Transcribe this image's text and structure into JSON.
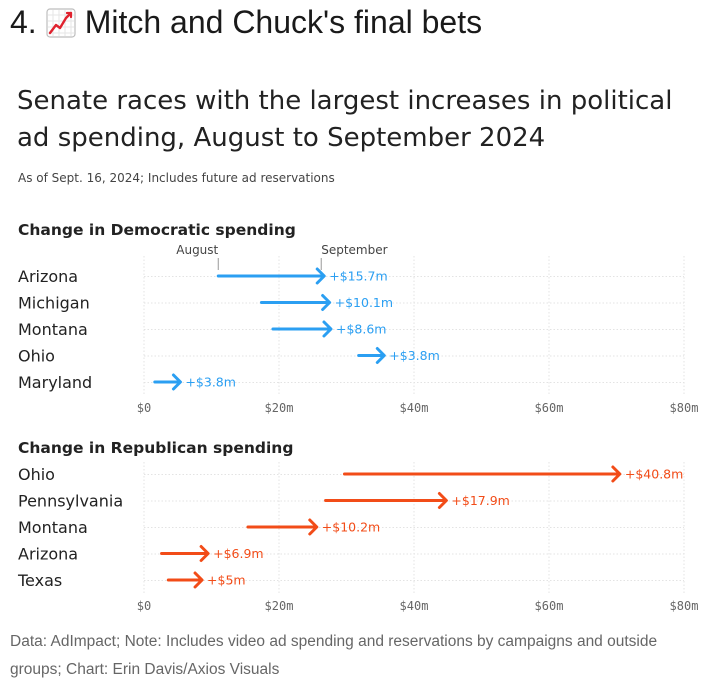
{
  "page": {
    "section_number": "4.",
    "section_icon": "chart-increasing-emoji",
    "section_title": "Mitch and Chuck's final bets"
  },
  "chart_title": "Senate races with the largest increases in political ad spending, August to September 2024",
  "chart_subtitle": "As of Sept. 16, 2024; Includes future ad reservations",
  "footer": "Data: AdImpact; Note: Includes video ad spending and reservations by campaigns and outside groups; Chart: Erin Davis/Axios Visuals",
  "colors": {
    "democratic": "#2b9ff2",
    "republican": "#f24c18",
    "grid": "#e3e3e3",
    "text": "#222222"
  },
  "chart_data": [
    {
      "type": "arrow-range",
      "title": "Change in Democratic spending",
      "color": "#2b9ff2",
      "xlim": [
        0,
        80
      ],
      "xticks": [
        0,
        20,
        40,
        60,
        80
      ],
      "xtick_labels": [
        "$0",
        "$20m",
        "$40m",
        "$60m",
        "$80m"
      ],
      "annotations": {
        "start": "August",
        "end": "September"
      },
      "rows": [
        {
          "state": "Arizona",
          "august": 11.0,
          "september": 26.7,
          "change_label": "+$15.7m"
        },
        {
          "state": "Michigan",
          "august": 17.4,
          "september": 27.5,
          "change_label": "+$10.1m"
        },
        {
          "state": "Montana",
          "august": 19.1,
          "september": 27.7,
          "change_label": "+$8.6m"
        },
        {
          "state": "Ohio",
          "august": 31.8,
          "september": 35.6,
          "change_label": "+$3.8m"
        },
        {
          "state": "Maryland",
          "august": 1.6,
          "september": 5.4,
          "change_label": "+$3.8m"
        }
      ]
    },
    {
      "type": "arrow-range",
      "title": "Change in Republican spending",
      "color": "#f24c18",
      "xlim": [
        0,
        80
      ],
      "xticks": [
        0,
        20,
        40,
        60,
        80
      ],
      "xtick_labels": [
        "$0",
        "$20m",
        "$40m",
        "$60m",
        "$80m"
      ],
      "rows": [
        {
          "state": "Ohio",
          "august": 29.7,
          "september": 70.5,
          "change_label": "+$40.8m"
        },
        {
          "state": "Pennsylvania",
          "august": 26.9,
          "september": 44.8,
          "change_label": "+$17.9m"
        },
        {
          "state": "Montana",
          "august": 15.4,
          "september": 25.6,
          "change_label": "+$10.2m"
        },
        {
          "state": "Arizona",
          "august": 2.6,
          "september": 9.5,
          "change_label": "+$6.9m"
        },
        {
          "state": "Texas",
          "august": 3.6,
          "september": 8.6,
          "change_label": "+$5m"
        }
      ]
    }
  ]
}
